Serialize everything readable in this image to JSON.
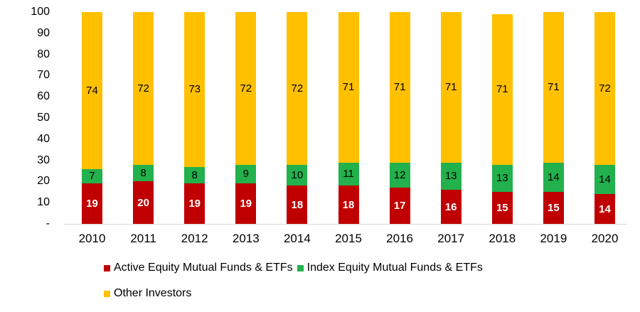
{
  "chart_data": {
    "type": "bar",
    "stacked": true,
    "title": "",
    "xlabel": "",
    "ylabel": "",
    "categories": [
      "2010",
      "2011",
      "2012",
      "2013",
      "2014",
      "2015",
      "2016",
      "2017",
      "2018",
      "2019",
      "2020"
    ],
    "series": [
      {
        "name": "Active Equity Mutual Funds & ETFs",
        "color": "#C00000",
        "label_color": "#FFFFFF",
        "label_bold": true,
        "values": [
          19,
          20,
          19,
          19,
          18,
          18,
          17,
          16,
          15,
          15,
          14
        ]
      },
      {
        "name": "Index Equity Mutual Funds & ETFs",
        "color": "#22B14C",
        "label_color": "#000000",
        "label_bold": false,
        "values": [
          7,
          8,
          8,
          9,
          10,
          11,
          12,
          13,
          13,
          14,
          14
        ]
      },
      {
        "name": "Other Investors",
        "color": "#FFC000",
        "label_color": "#000000",
        "label_bold": false,
        "values": [
          74,
          72,
          73,
          72,
          72,
          71,
          71,
          71,
          71,
          71,
          72
        ]
      }
    ],
    "ylim": [
      0,
      100
    ],
    "yticks": [
      {
        "value": 100,
        "label": "100"
      },
      {
        "value": 90,
        "label": "90"
      },
      {
        "value": 80,
        "label": "80"
      },
      {
        "value": 70,
        "label": "70"
      },
      {
        "value": 60,
        "label": "60"
      },
      {
        "value": 50,
        "label": "50"
      },
      {
        "value": 40,
        "label": "40"
      },
      {
        "value": 30,
        "label": "30"
      },
      {
        "value": 20,
        "label": "20"
      },
      {
        "value": 10,
        "label": "10"
      },
      {
        "value": 0,
        "label": "-"
      }
    ],
    "grid": false,
    "axis_line_color": "#D9D9D9",
    "legend_position": "bottom-left",
    "legend_rows": [
      [
        0,
        1
      ],
      [
        2
      ]
    ]
  }
}
